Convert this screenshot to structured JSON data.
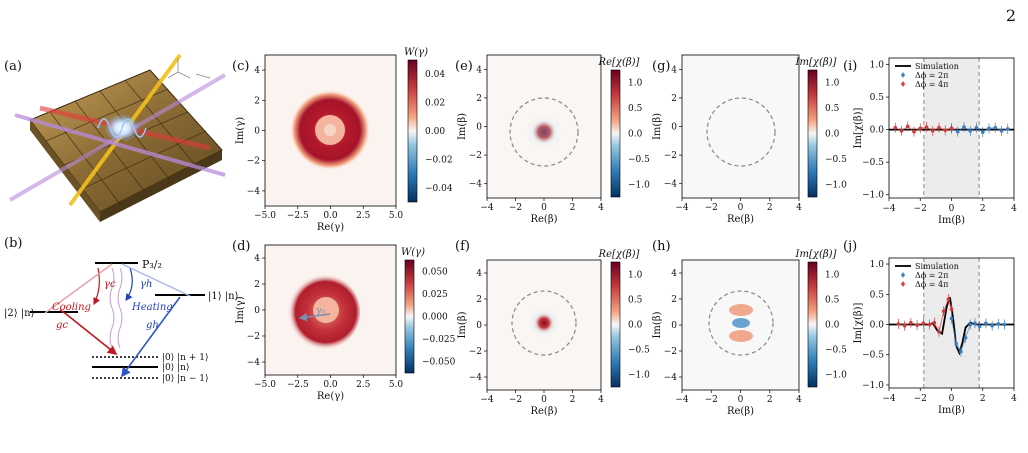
{
  "page_number": "2",
  "panel_labels": {
    "a": "(a)",
    "b": "(b)",
    "c": "(c)",
    "d": "(d)",
    "e": "(e)",
    "f": "(f)",
    "g": "(g)",
    "h": "(h)",
    "i": "(i)",
    "j": "(j)"
  },
  "level_diagram": {
    "P": "P₃/₂",
    "left_state": "|2⟩ |n⟩",
    "right_state": "|1⟩ |n⟩",
    "cooling": "Cooling",
    "heating": "Heating",
    "gamma_c": "γc",
    "gamma_h": "γh",
    "g_c": "gc",
    "g_h": "gh",
    "n_plus": "|0⟩ |n + 1⟩",
    "n_mid": "|0⟩ |n⟩",
    "n_minus": "|0⟩ |n − 1⟩"
  },
  "wigner_c": {
    "cbar_title": "W(γ)",
    "xlabel": "Re(γ)",
    "ylabel": "Im(γ)",
    "xticks": [
      "−5.0",
      "−2.5",
      "0.0",
      "2.5",
      "5.0"
    ],
    "yticks": [
      "4",
      "2",
      "0",
      "−2",
      "−4"
    ],
    "cticks": [
      "0.04",
      "0.02",
      "0.00",
      "−0.02",
      "−0.04"
    ]
  },
  "wigner_d": {
    "cbar_title": "W(γ)",
    "xlabel": "Re(γ)",
    "ylabel": "Im(γ)",
    "arrow_label": "γ₀",
    "xticks": [
      "−5.0",
      "−2.5",
      "0.0",
      "2.5",
      "5.0"
    ],
    "yticks": [
      "4",
      "2",
      "0",
      "−2",
      "−4"
    ],
    "cticks": [
      "0.050",
      "0.025",
      "0.000",
      "−0.025",
      "−0.050"
    ]
  },
  "char_e": {
    "cbar_title": "Re[χ(β)]",
    "xlabel": "Re(β)",
    "ylabel": "Im(β)",
    "xticks": [
      "−4",
      "−2",
      "0",
      "2",
      "4"
    ],
    "yticks": [
      "4",
      "2",
      "0",
      "−2",
      "−4"
    ],
    "cticks": [
      "1.0",
      "0.5",
      "0.0",
      "−0.5",
      "−1.0"
    ]
  },
  "char_g": {
    "cbar_title": "Im[χ(β)]",
    "xlabel": "Re(β)",
    "ylabel": "Im(β)",
    "xticks": [
      "−4",
      "−2",
      "0",
      "2",
      "4"
    ],
    "yticks": [
      "4",
      "2",
      "0",
      "−2",
      "−4"
    ],
    "cticks": [
      "1.0",
      "0.5",
      "0.0",
      "−0.5",
      "−1.0"
    ]
  },
  "char_f": {
    "cbar_title": "Re[χ(β)]",
    "xlabel": "Re(β)",
    "ylabel": "Im(β)",
    "xticks": [
      "−4",
      "−2",
      "0",
      "2",
      "4"
    ],
    "yticks": [
      "4",
      "2",
      "0",
      "−2",
      "−4"
    ],
    "cticks": [
      "1.0",
      "0.5",
      "0.0",
      "−0.5",
      "−1.0"
    ]
  },
  "char_h": {
    "cbar_title": "Im[χ(β)]",
    "xlabel": "Re(β)",
    "ylabel": "Im(β)",
    "xticks": [
      "−4",
      "−2",
      "0",
      "2",
      "4"
    ],
    "yticks": [
      "4",
      "2",
      "0",
      "−2",
      "−4"
    ],
    "cticks": [
      "1.0",
      "0.5",
      "0.0",
      "−0.5",
      "−1.0"
    ]
  },
  "chart_data": [
    {
      "type": "line",
      "panel": "(i)",
      "xlabel": "Im(β)",
      "ylabel": "Im[χ(β)]",
      "xlim": [
        -4,
        4
      ],
      "ylim": [
        -1.05,
        1.1
      ],
      "xticks": [
        "−4",
        "−2",
        "0",
        "2",
        "4"
      ],
      "yticks": [
        "1.0",
        "0.5",
        "0.0",
        "−0.5",
        "−1.0"
      ],
      "shaded_region": [
        -1.77,
        1.77
      ],
      "legend": {
        "placement": "top-left",
        "entries": [
          "Simulation",
          "Δϕ = 2π",
          "Δϕ = 4π"
        ]
      },
      "series": [
        {
          "name": "Simulation",
          "x": [
            -4,
            4
          ],
          "y": [
            0,
            0
          ],
          "color": "#000000"
        },
        {
          "name": "Δϕ = 2π",
          "x": [
            0.0,
            0.4,
            0.8,
            1.2,
            1.6,
            2.0,
            2.4,
            2.8,
            3.2,
            3.6
          ],
          "y": [
            0.02,
            -0.03,
            0.04,
            -0.02,
            0.03,
            -0.04,
            0.02,
            0.03,
            -0.02,
            0.01
          ],
          "color": "#3b7dbf"
        },
        {
          "name": "Δϕ = 4π",
          "x": [
            -3.6,
            -3.2,
            -2.8,
            -2.4,
            -2.0,
            -1.6,
            -1.2,
            -0.8,
            -0.4,
            0.0
          ],
          "y": [
            0.03,
            -0.02,
            0.05,
            -0.03,
            0.02,
            0.04,
            -0.02,
            0.03,
            -0.01,
            0.02
          ],
          "color": "#d23a3a"
        }
      ]
    },
    {
      "type": "line",
      "panel": "(j)",
      "xlabel": "Im(β)",
      "ylabel": "Im[χ(β)]",
      "xlim": [
        -4,
        4
      ],
      "ylim": [
        -1.05,
        1.1
      ],
      "xticks": [
        "−4",
        "−2",
        "0",
        "2",
        "4"
      ],
      "yticks": [
        "1.0",
        "0.5",
        "0.0",
        "−0.5",
        "−1.0"
      ],
      "shaded_region": [
        -1.77,
        1.77
      ],
      "legend": {
        "placement": "top-left",
        "entries": [
          "Simulation",
          "Δϕ = 2π",
          "Δϕ = 4π"
        ]
      },
      "series": [
        {
          "name": "Simulation",
          "x": [
            -4,
            -1.5,
            -1.2,
            -0.9,
            -0.6,
            -0.3,
            -0.1,
            0.1,
            0.3,
            0.5,
            0.7,
            0.9,
            1.2,
            1.5,
            4
          ],
          "y": [
            0,
            0,
            0.02,
            -0.1,
            -0.15,
            0.3,
            0.45,
            0.1,
            -0.35,
            -0.47,
            -0.3,
            -0.05,
            0.03,
            0,
            0
          ],
          "color": "#000000"
        },
        {
          "name": "Δϕ = 2π",
          "x": [
            0.0,
            0.3,
            0.6,
            0.9,
            1.2,
            1.5,
            1.8,
            2.2,
            2.6,
            3.0,
            3.4
          ],
          "y": [
            0.1,
            -0.32,
            -0.45,
            -0.22,
            0.0,
            0.02,
            -0.03,
            0.02,
            -0.02,
            0.01,
            0.0
          ],
          "color": "#3b7dbf"
        },
        {
          "name": "Δϕ = 4π",
          "x": [
            -3.4,
            -3.0,
            -2.6,
            -2.2,
            -1.8,
            -1.4,
            -1.1,
            -0.8,
            -0.5,
            -0.2,
            0.0
          ],
          "y": [
            0.01,
            -0.02,
            0.03,
            -0.01,
            0.02,
            0.0,
            0.03,
            -0.12,
            0.22,
            0.42,
            0.25
          ],
          "color": "#d23a3a"
        }
      ]
    }
  ]
}
